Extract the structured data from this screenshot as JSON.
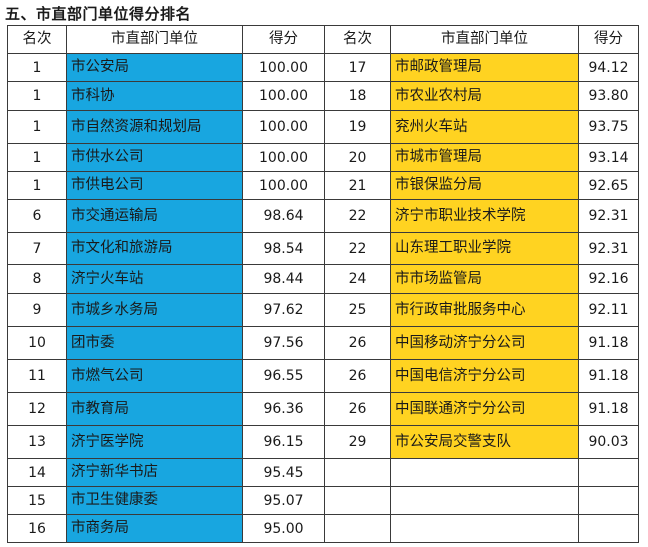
{
  "title": "五、市直部门单位得分排名",
  "headers": {
    "rank": "名次",
    "unit": "市直部门单位",
    "score": "得分"
  },
  "colors": {
    "left_unit_fill": "#18A6E0",
    "right_unit_fill": "#FFD321"
  },
  "rows": [
    {
      "l_rank": "1",
      "l_unit": "市公安局",
      "l_score": "100.00",
      "r_rank": "17",
      "r_unit": "市邮政管理局",
      "r_score": "94.12"
    },
    {
      "l_rank": "1",
      "l_unit": "市科协",
      "l_score": "100.00",
      "r_rank": "18",
      "r_unit": "市农业农村局",
      "r_score": "93.80"
    },
    {
      "l_rank": "1",
      "l_unit": "市自然资源和规划局",
      "l_score": "100.00",
      "r_rank": "19",
      "r_unit": "兖州火车站",
      "r_score": "93.75"
    },
    {
      "l_rank": "1",
      "l_unit": "市供水公司",
      "l_score": "100.00",
      "r_rank": "20",
      "r_unit": "市城市管理局",
      "r_score": "93.14"
    },
    {
      "l_rank": "1",
      "l_unit": "市供电公司",
      "l_score": "100.00",
      "r_rank": "21",
      "r_unit": "市银保监分局",
      "r_score": "92.65"
    },
    {
      "l_rank": "6",
      "l_unit": "市交通运输局",
      "l_score": "98.64",
      "r_rank": "22",
      "r_unit": "济宁市职业技术学院",
      "r_score": "92.31"
    },
    {
      "l_rank": "7",
      "l_unit": "市文化和旅游局",
      "l_score": "98.54",
      "r_rank": "22",
      "r_unit": "山东理工职业学院",
      "r_score": "92.31"
    },
    {
      "l_rank": "8",
      "l_unit": "济宁火车站",
      "l_score": "98.44",
      "r_rank": "24",
      "r_unit": "市市场监管局",
      "r_score": "92.16"
    },
    {
      "l_rank": "9",
      "l_unit": "市城乡水务局",
      "l_score": "97.62",
      "r_rank": "25",
      "r_unit": "市行政审批服务中心",
      "r_score": "92.11"
    },
    {
      "l_rank": "10",
      "l_unit": "团市委",
      "l_score": "97.56",
      "r_rank": "26",
      "r_unit": "中国移动济宁分公司",
      "r_score": "91.18"
    },
    {
      "l_rank": "11",
      "l_unit": "市燃气公司",
      "l_score": "96.55",
      "r_rank": "26",
      "r_unit": "中国电信济宁分公司",
      "r_score": "91.18"
    },
    {
      "l_rank": "12",
      "l_unit": "市教育局",
      "l_score": "96.36",
      "r_rank": "26",
      "r_unit": "中国联通济宁分公司",
      "r_score": "91.18"
    },
    {
      "l_rank": "13",
      "l_unit": "济宁医学院",
      "l_score": "96.15",
      "r_rank": "29",
      "r_unit": "市公安局交警支队",
      "r_score": "90.03"
    },
    {
      "l_rank": "14",
      "l_unit": "济宁新华书店",
      "l_score": "95.45",
      "r_rank": "",
      "r_unit": "",
      "r_score": ""
    },
    {
      "l_rank": "15",
      "l_unit": "市卫生健康委",
      "l_score": "95.07",
      "r_rank": "",
      "r_unit": "",
      "r_score": ""
    },
    {
      "l_rank": "16",
      "l_unit": "市商务局",
      "l_score": "95.00",
      "r_rank": "",
      "r_unit": "",
      "r_score": ""
    }
  ]
}
